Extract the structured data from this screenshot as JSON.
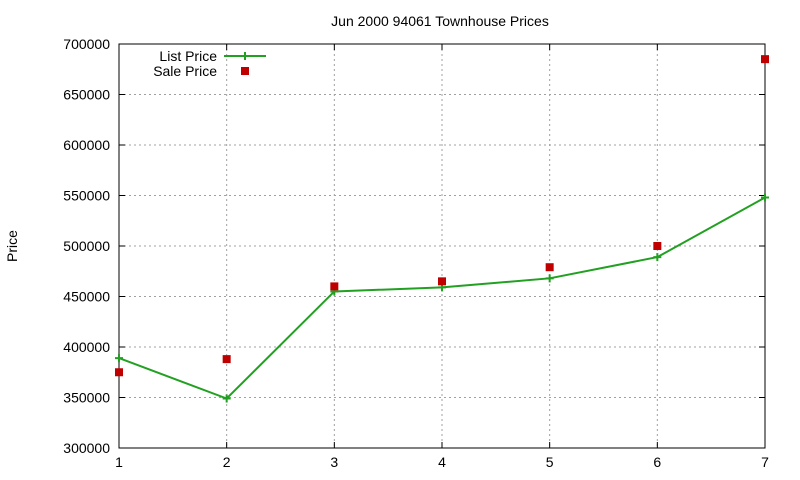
{
  "chart_data": {
    "type": "line",
    "title": "Jun 2000 94061 Townhouse Prices",
    "xlabel": "",
    "ylabel": "Price",
    "x": [
      1,
      2,
      3,
      4,
      5,
      6,
      7
    ],
    "xlim": [
      1,
      7
    ],
    "ylim": [
      300000,
      700000
    ],
    "x_ticks": [
      "1",
      "2",
      "3",
      "4",
      "5",
      "6",
      "7"
    ],
    "y_ticks": [
      "300000",
      "350000",
      "400000",
      "450000",
      "500000",
      "550000",
      "600000",
      "650000",
      "700000"
    ],
    "grid": true,
    "legend_position": "top-left",
    "series": [
      {
        "name": "List Price",
        "style": "line-with-plus-markers",
        "color": "#22a022",
        "values": [
          389000,
          349000,
          455000,
          459000,
          468000,
          489000,
          548000
        ]
      },
      {
        "name": "Sale Price",
        "style": "square-markers",
        "color": "#c00000",
        "values": [
          375000,
          388000,
          460000,
          465000,
          479000,
          500000,
          685000
        ]
      }
    ]
  }
}
